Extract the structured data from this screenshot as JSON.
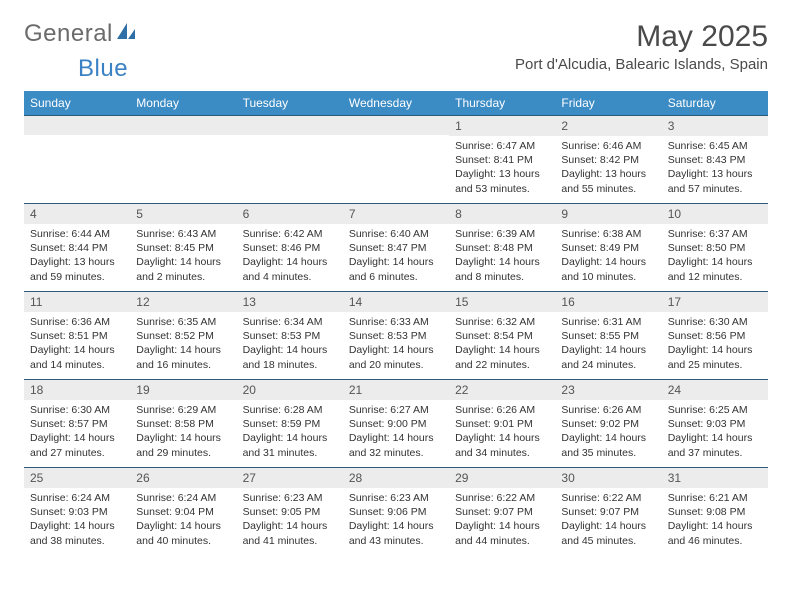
{
  "logo": {
    "text1": "General",
    "text2": "Blue"
  },
  "title": "May 2025",
  "location": "Port d'Alcudia, Balearic Islands, Spain",
  "colors": {
    "header_bg": "#3b8bc4",
    "header_text": "#ffffff",
    "daynum_bg": "#ececec",
    "border": "#2b5a7a",
    "logo_gray": "#6b6b6b",
    "logo_blue": "#3b82c4"
  },
  "day_labels": [
    "Sunday",
    "Monday",
    "Tuesday",
    "Wednesday",
    "Thursday",
    "Friday",
    "Saturday"
  ],
  "weeks": [
    [
      null,
      null,
      null,
      null,
      {
        "n": "1",
        "sr": "Sunrise: 6:47 AM",
        "ss": "Sunset: 8:41 PM",
        "dl": "Daylight: 13 hours and 53 minutes."
      },
      {
        "n": "2",
        "sr": "Sunrise: 6:46 AM",
        "ss": "Sunset: 8:42 PM",
        "dl": "Daylight: 13 hours and 55 minutes."
      },
      {
        "n": "3",
        "sr": "Sunrise: 6:45 AM",
        "ss": "Sunset: 8:43 PM",
        "dl": "Daylight: 13 hours and 57 minutes."
      }
    ],
    [
      {
        "n": "4",
        "sr": "Sunrise: 6:44 AM",
        "ss": "Sunset: 8:44 PM",
        "dl": "Daylight: 13 hours and 59 minutes."
      },
      {
        "n": "5",
        "sr": "Sunrise: 6:43 AM",
        "ss": "Sunset: 8:45 PM",
        "dl": "Daylight: 14 hours and 2 minutes."
      },
      {
        "n": "6",
        "sr": "Sunrise: 6:42 AM",
        "ss": "Sunset: 8:46 PM",
        "dl": "Daylight: 14 hours and 4 minutes."
      },
      {
        "n": "7",
        "sr": "Sunrise: 6:40 AM",
        "ss": "Sunset: 8:47 PM",
        "dl": "Daylight: 14 hours and 6 minutes."
      },
      {
        "n": "8",
        "sr": "Sunrise: 6:39 AM",
        "ss": "Sunset: 8:48 PM",
        "dl": "Daylight: 14 hours and 8 minutes."
      },
      {
        "n": "9",
        "sr": "Sunrise: 6:38 AM",
        "ss": "Sunset: 8:49 PM",
        "dl": "Daylight: 14 hours and 10 minutes."
      },
      {
        "n": "10",
        "sr": "Sunrise: 6:37 AM",
        "ss": "Sunset: 8:50 PM",
        "dl": "Daylight: 14 hours and 12 minutes."
      }
    ],
    [
      {
        "n": "11",
        "sr": "Sunrise: 6:36 AM",
        "ss": "Sunset: 8:51 PM",
        "dl": "Daylight: 14 hours and 14 minutes."
      },
      {
        "n": "12",
        "sr": "Sunrise: 6:35 AM",
        "ss": "Sunset: 8:52 PM",
        "dl": "Daylight: 14 hours and 16 minutes."
      },
      {
        "n": "13",
        "sr": "Sunrise: 6:34 AM",
        "ss": "Sunset: 8:53 PM",
        "dl": "Daylight: 14 hours and 18 minutes."
      },
      {
        "n": "14",
        "sr": "Sunrise: 6:33 AM",
        "ss": "Sunset: 8:53 PM",
        "dl": "Daylight: 14 hours and 20 minutes."
      },
      {
        "n": "15",
        "sr": "Sunrise: 6:32 AM",
        "ss": "Sunset: 8:54 PM",
        "dl": "Daylight: 14 hours and 22 minutes."
      },
      {
        "n": "16",
        "sr": "Sunrise: 6:31 AM",
        "ss": "Sunset: 8:55 PM",
        "dl": "Daylight: 14 hours and 24 minutes."
      },
      {
        "n": "17",
        "sr": "Sunrise: 6:30 AM",
        "ss": "Sunset: 8:56 PM",
        "dl": "Daylight: 14 hours and 25 minutes."
      }
    ],
    [
      {
        "n": "18",
        "sr": "Sunrise: 6:30 AM",
        "ss": "Sunset: 8:57 PM",
        "dl": "Daylight: 14 hours and 27 minutes."
      },
      {
        "n": "19",
        "sr": "Sunrise: 6:29 AM",
        "ss": "Sunset: 8:58 PM",
        "dl": "Daylight: 14 hours and 29 minutes."
      },
      {
        "n": "20",
        "sr": "Sunrise: 6:28 AM",
        "ss": "Sunset: 8:59 PM",
        "dl": "Daylight: 14 hours and 31 minutes."
      },
      {
        "n": "21",
        "sr": "Sunrise: 6:27 AM",
        "ss": "Sunset: 9:00 PM",
        "dl": "Daylight: 14 hours and 32 minutes."
      },
      {
        "n": "22",
        "sr": "Sunrise: 6:26 AM",
        "ss": "Sunset: 9:01 PM",
        "dl": "Daylight: 14 hours and 34 minutes."
      },
      {
        "n": "23",
        "sr": "Sunrise: 6:26 AM",
        "ss": "Sunset: 9:02 PM",
        "dl": "Daylight: 14 hours and 35 minutes."
      },
      {
        "n": "24",
        "sr": "Sunrise: 6:25 AM",
        "ss": "Sunset: 9:03 PM",
        "dl": "Daylight: 14 hours and 37 minutes."
      }
    ],
    [
      {
        "n": "25",
        "sr": "Sunrise: 6:24 AM",
        "ss": "Sunset: 9:03 PM",
        "dl": "Daylight: 14 hours and 38 minutes."
      },
      {
        "n": "26",
        "sr": "Sunrise: 6:24 AM",
        "ss": "Sunset: 9:04 PM",
        "dl": "Daylight: 14 hours and 40 minutes."
      },
      {
        "n": "27",
        "sr": "Sunrise: 6:23 AM",
        "ss": "Sunset: 9:05 PM",
        "dl": "Daylight: 14 hours and 41 minutes."
      },
      {
        "n": "28",
        "sr": "Sunrise: 6:23 AM",
        "ss": "Sunset: 9:06 PM",
        "dl": "Daylight: 14 hours and 43 minutes."
      },
      {
        "n": "29",
        "sr": "Sunrise: 6:22 AM",
        "ss": "Sunset: 9:07 PM",
        "dl": "Daylight: 14 hours and 44 minutes."
      },
      {
        "n": "30",
        "sr": "Sunrise: 6:22 AM",
        "ss": "Sunset: 9:07 PM",
        "dl": "Daylight: 14 hours and 45 minutes."
      },
      {
        "n": "31",
        "sr": "Sunrise: 6:21 AM",
        "ss": "Sunset: 9:08 PM",
        "dl": "Daylight: 14 hours and 46 minutes."
      }
    ]
  ]
}
